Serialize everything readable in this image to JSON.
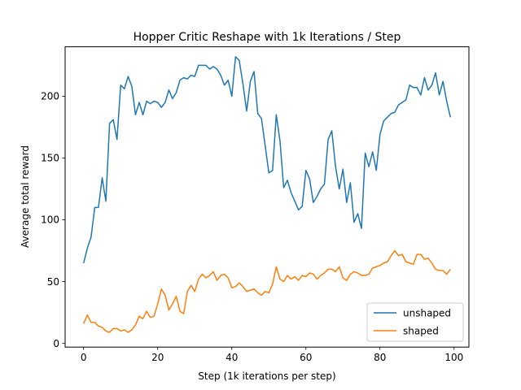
{
  "chart_data": {
    "type": "line",
    "title": "Hopper Critic Reshape with 1k Iterations / Step",
    "xlabel": "Step (1k iterations per step)",
    "ylabel": "Average total reward",
    "xlim": [
      -5,
      104
    ],
    "ylim": [
      -3,
      240
    ],
    "xticks": [
      0,
      20,
      40,
      60,
      80,
      100
    ],
    "yticks": [
      0,
      50,
      100,
      150,
      200
    ],
    "grid": false,
    "legend_position": "lower-right",
    "series": [
      {
        "name": "unshaped",
        "color": "#1f77b4",
        "values": [
          65,
          77,
          86,
          110,
          110,
          134,
          115,
          178,
          181,
          165,
          209,
          206,
          216,
          208,
          185,
          195,
          185,
          196,
          194,
          196,
          195,
          191,
          195,
          205,
          198,
          203,
          213,
          215,
          214,
          217,
          216,
          225,
          225,
          225,
          222,
          224,
          222,
          217,
          209,
          213,
          200,
          232,
          229,
          210,
          188,
          212,
          220,
          186,
          182,
          160,
          138,
          140,
          185,
          164,
          126,
          132,
          122,
          115,
          108,
          111,
          140,
          133,
          114,
          119,
          125,
          129,
          165,
          172,
          143,
          125,
          141,
          114,
          130,
          98,
          105,
          93,
          154,
          143,
          155,
          140,
          169,
          180,
          183,
          186,
          187,
          193,
          195,
          197,
          209,
          207,
          207,
          201,
          215,
          205,
          209,
          219,
          201,
          212,
          196,
          183
        ]
      },
      {
        "name": "shaped",
        "color": "#ff7f0e",
        "values": [
          16,
          23,
          17,
          17,
          14,
          13,
          10,
          9,
          12,
          12,
          10,
          11,
          9,
          11,
          15,
          22,
          20,
          26,
          21,
          22,
          32,
          44,
          39,
          27,
          32,
          38,
          26,
          24,
          42,
          47,
          42,
          52,
          56,
          53,
          55,
          58,
          51,
          55,
          56,
          53,
          45,
          46,
          49,
          46,
          42,
          43,
          44,
          41,
          39,
          42,
          41,
          48,
          62,
          52,
          50,
          55,
          52,
          54,
          51,
          55,
          54,
          57,
          56,
          52,
          55,
          57,
          60,
          60,
          58,
          62,
          53,
          51,
          56,
          58,
          57,
          55,
          55,
          56,
          61,
          62,
          63,
          65,
          66,
          71,
          75,
          71,
          72,
          66,
          65,
          64,
          72,
          72,
          68,
          69,
          65,
          60,
          59,
          59,
          56,
          60
        ]
      }
    ]
  }
}
